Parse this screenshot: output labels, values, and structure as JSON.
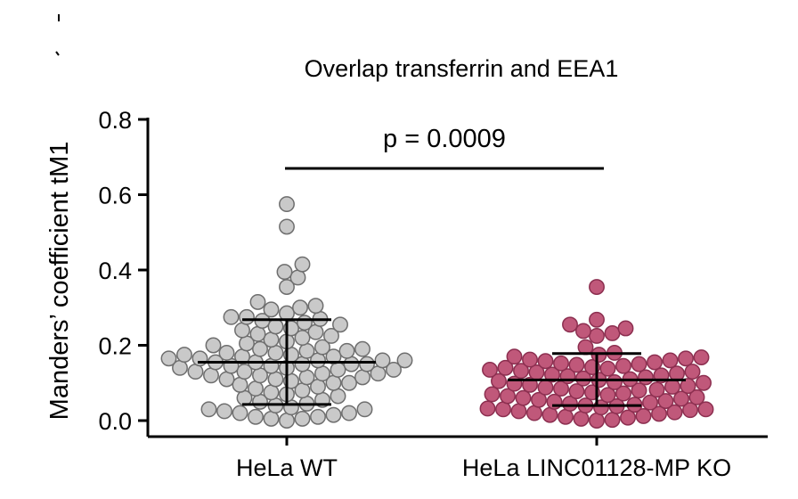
{
  "chart_data": {
    "type": "scatter",
    "title": "Overlap transferrin and EEA1",
    "ylabel": "Manders’ coefficient tM1",
    "xlabel": "",
    "ylim": [
      0,
      0.8
    ],
    "yticks": [
      "0.0",
      "0.2",
      "0.4",
      "0.6",
      "0.8"
    ],
    "categories": [
      "HeLa WT",
      "HeLa LINC01128-MP KO"
    ],
    "annotation": "p = 0.0009",
    "grid": false,
    "legend": "none",
    "series": [
      {
        "color": "#c9c9c9",
        "stroke": "#6e6e6e",
        "mean": 0.155,
        "sd_low": 0.043,
        "sd_high": 0.268,
        "values": [
          0.575,
          0.515,
          0.415,
          0.395,
          0.38,
          0.355,
          0.315,
          0.305,
          0.3,
          0.295,
          0.285,
          0.275,
          0.275,
          0.27,
          0.265,
          0.26,
          0.255,
          0.25,
          0.245,
          0.24,
          0.235,
          0.23,
          0.225,
          0.22,
          0.215,
          0.21,
          0.205,
          0.2,
          0.195,
          0.19,
          0.19,
          0.185,
          0.185,
          0.18,
          0.18,
          0.175,
          0.175,
          0.17,
          0.17,
          0.165,
          0.165,
          0.16,
          0.16,
          0.16,
          0.155,
          0.155,
          0.15,
          0.15,
          0.15,
          0.145,
          0.145,
          0.14,
          0.14,
          0.135,
          0.135,
          0.13,
          0.13,
          0.125,
          0.125,
          0.12,
          0.12,
          0.115,
          0.115,
          0.11,
          0.11,
          0.105,
          0.1,
          0.1,
          0.095,
          0.09,
          0.085,
          0.08,
          0.075,
          0.07,
          0.065,
          0.06,
          0.055,
          0.05,
          0.045,
          0.04,
          0.035,
          0.03,
          0.03,
          0.025,
          0.02,
          0.02,
          0.015,
          0.01,
          0.01,
          0.005,
          0.005,
          0.0
        ]
      },
      {
        "color": "#c0587a",
        "stroke": "#8c2f50",
        "mean": 0.108,
        "sd_low": 0.04,
        "sd_high": 0.178,
        "values": [
          0.355,
          0.268,
          0.255,
          0.245,
          0.238,
          0.232,
          0.225,
          0.195,
          0.18,
          0.175,
          0.17,
          0.168,
          0.165,
          0.162,
          0.16,
          0.158,
          0.155,
          0.152,
          0.15,
          0.148,
          0.145,
          0.142,
          0.14,
          0.138,
          0.135,
          0.132,
          0.13,
          0.128,
          0.125,
          0.122,
          0.12,
          0.118,
          0.115,
          0.112,
          0.11,
          0.108,
          0.105,
          0.102,
          0.1,
          0.098,
          0.095,
          0.092,
          0.09,
          0.088,
          0.085,
          0.082,
          0.08,
          0.078,
          0.075,
          0.072,
          0.07,
          0.068,
          0.065,
          0.062,
          0.06,
          0.058,
          0.055,
          0.052,
          0.05,
          0.048,
          0.045,
          0.042,
          0.04,
          0.038,
          0.035,
          0.032,
          0.03,
          0.03,
          0.028,
          0.025,
          0.022,
          0.02,
          0.018,
          0.015,
          0.012,
          0.01,
          0.008,
          0.005,
          0.002,
          0.0
        ]
      }
    ]
  }
}
